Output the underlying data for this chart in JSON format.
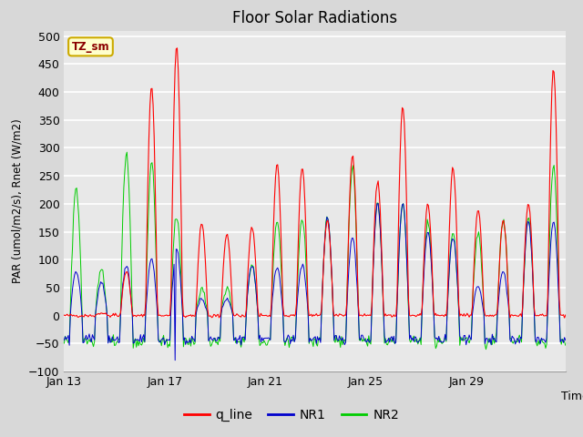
{
  "title": "Floor Solar Radiations",
  "xlabel": "Time",
  "ylabel": "PAR (umol/m2/s), Rnet (W/m2)",
  "ylim": [
    -100,
    510
  ],
  "yticks": [
    -100,
    -50,
    0,
    50,
    100,
    150,
    200,
    250,
    300,
    350,
    400,
    450,
    500
  ],
  "x_tick_labels": [
    "Jan 13",
    "Jan 17",
    "Jan 21",
    "Jan 25",
    "Jan 29"
  ],
  "x_tick_positions": [
    0,
    96,
    192,
    288,
    384
  ],
  "total_points": 480,
  "background_color": "#d8d8d8",
  "plot_bg_color": "#e8e8e8",
  "grid_color": "#ffffff",
  "line_colors": {
    "q_line": "#ff0000",
    "NR1": "#0000cc",
    "NR2": "#00cc00"
  },
  "legend_label": "TZ_sm",
  "legend_box_color": "#ffffcc",
  "legend_box_edge": "#ccaa00"
}
